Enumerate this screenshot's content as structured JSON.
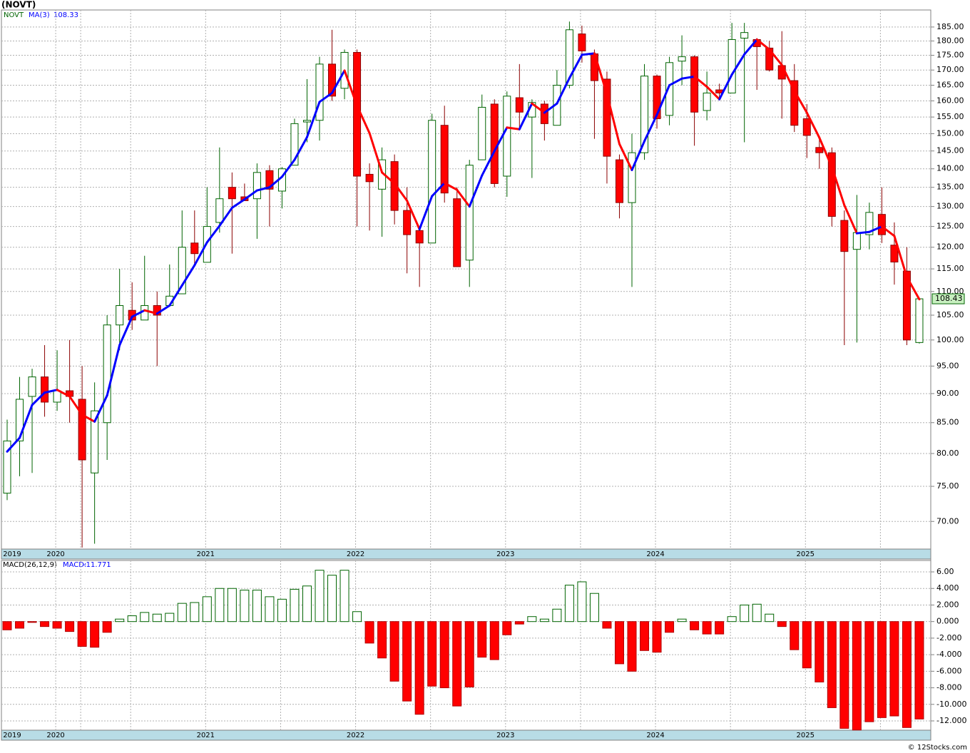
{
  "chart_data": [
    {
      "type": "candlestick",
      "title": "(NOVT)",
      "symbol": "NOVT",
      "log_scale": true,
      "grid": true,
      "categories": [
        "2019",
        null,
        null,
        null,
        "2020",
        null,
        null,
        null,
        null,
        null,
        null,
        null,
        null,
        null,
        null,
        null,
        "2021",
        null,
        null,
        null,
        null,
        null,
        null,
        null,
        null,
        null,
        null,
        null,
        "2022",
        null,
        null,
        null,
        null,
        null,
        null,
        null,
        null,
        null,
        null,
        null,
        "2023",
        null,
        null,
        null,
        null,
        null,
        null,
        null,
        null,
        null,
        null,
        null,
        "2024",
        null,
        null,
        null,
        null,
        null,
        null,
        null,
        null,
        null,
        null,
        null,
        "2025",
        null,
        null,
        null,
        null,
        null,
        null,
        null,
        null,
        null
      ],
      "open": [
        74,
        82,
        89.5,
        93,
        88.5,
        90.5,
        89,
        77,
        85,
        103,
        106,
        104,
        107,
        107,
        109.5,
        121,
        116.5,
        126,
        135,
        132.5,
        132,
        139.5,
        134,
        141,
        153.5,
        154,
        172,
        164,
        176,
        138.5,
        134.5,
        142,
        129,
        124,
        121,
        152.5,
        132,
        117,
        142.5,
        159,
        138,
        161,
        155,
        159,
        152.5,
        165,
        182.5,
        175.5,
        167,
        142.5,
        131,
        144.5,
        168,
        155.5,
        173,
        174.5,
        157,
        163.5,
        162.5,
        181,
        180.5,
        177.5,
        171.5,
        166.5,
        154.5,
        146,
        144.5,
        126.5,
        119.5,
        123,
        128,
        120.5,
        114.5,
        99.5
      ],
      "high": [
        85.5,
        93,
        94.5,
        99,
        98,
        100,
        95,
        92,
        105,
        115,
        112,
        118,
        110,
        116,
        129,
        129,
        135,
        146,
        139,
        136,
        141.5,
        141,
        140.5,
        154.5,
        167,
        174.5,
        184,
        177,
        177,
        141.5,
        146,
        144,
        135,
        125,
        156,
        158.5,
        135,
        142.5,
        162,
        160.5,
        163,
        172,
        160.5,
        160,
        170,
        187,
        185.5,
        177,
        169.5,
        144,
        150,
        172,
        168.5,
        174.5,
        182,
        175,
        169.5,
        165.5,
        186.5,
        186.5,
        181,
        180,
        183.5,
        172,
        159,
        148.5,
        146,
        129,
        133,
        131,
        135,
        126,
        120,
        108.6
      ],
      "low": [
        73,
        76.5,
        77,
        86,
        87,
        85,
        66.5,
        67,
        79,
        98,
        102,
        104,
        95,
        107,
        109.5,
        116,
        116.5,
        123.5,
        118.5,
        131.5,
        122,
        125,
        129.5,
        141,
        147.5,
        148,
        160,
        160.5,
        125,
        124,
        122.5,
        125.5,
        114,
        111,
        121,
        131,
        115.5,
        111,
        142.5,
        135,
        132.5,
        151,
        137.5,
        148,
        152.5,
        164,
        172.5,
        148.5,
        136,
        127,
        111,
        142.5,
        151.5,
        152.5,
        165,
        146.5,
        154,
        160.5,
        162.5,
        147.5,
        163.5,
        169.5,
        154.5,
        150.5,
        143,
        140,
        125,
        99,
        99.5,
        119.5,
        121,
        111.5,
        99,
        99.3
      ],
      "close": [
        82,
        89,
        93,
        88.5,
        90.5,
        89.5,
        79,
        87,
        103,
        107,
        104,
        107,
        105,
        109,
        120,
        118.5,
        125,
        132,
        132,
        131.5,
        139,
        134.5,
        140,
        153,
        154,
        172,
        161.5,
        176,
        138,
        136.5,
        142.5,
        129,
        123,
        121,
        154,
        133.5,
        115.5,
        141,
        158,
        136,
        161.5,
        156.5,
        159.5,
        153,
        165,
        184,
        176.5,
        166.5,
        143.5,
        131,
        144.5,
        168,
        154.5,
        172.5,
        174.5,
        156.5,
        162.5,
        162.5,
        180.5,
        183,
        178,
        170,
        167,
        152.5,
        149.5,
        144.5,
        127.5,
        119,
        123.5,
        128.5,
        123,
        116.56,
        100,
        108.43
      ],
      "up_color": "#006400",
      "down_color": "#ff0000",
      "down_wick_color": "#8b0000",
      "overlay": {
        "name": "MA(3)",
        "up_color": "#0000ff",
        "down_color": "#ff0000",
        "values": [
          80.3,
          82.5,
          88,
          90.17,
          90.67,
          89.5,
          86.33,
          85.17,
          89.67,
          99,
          104.67,
          106,
          105.33,
          107,
          111.33,
          115.83,
          121.17,
          125.17,
          129.67,
          131.83,
          134.17,
          135,
          137.83,
          142.5,
          149,
          159.67,
          162.5,
          169.83,
          158.5,
          150.17,
          139,
          136,
          131.5,
          124.33,
          132.67,
          136.17,
          134.33,
          130,
          138.17,
          145,
          151.83,
          151.33,
          159.17,
          156.33,
          159.17,
          167.33,
          175.17,
          175.67,
          162.17,
          147,
          139.67,
          147.83,
          155.67,
          165,
          167.17,
          167.83,
          164.5,
          160.5,
          168.5,
          175.33,
          180.5,
          177,
          171.67,
          163.17,
          156.33,
          148.83,
          140.5,
          130.33,
          123.33,
          123.67,
          125,
          122.69,
          113.19,
          108.33
        ]
      },
      "ylim": [
        66.3,
        191.3
      ],
      "yticks": [
        {
          "value": 185,
          "label": "185.00"
        },
        {
          "value": 180,
          "label": "180.00"
        },
        {
          "value": 175,
          "label": "175.00"
        },
        {
          "value": 170,
          "label": "170.00"
        },
        {
          "value": 165,
          "label": "165.00"
        },
        {
          "value": 160,
          "label": "160.00"
        },
        {
          "value": 155,
          "label": "155.00"
        },
        {
          "value": 150,
          "label": "150.00"
        },
        {
          "value": 145,
          "label": "145.00"
        },
        {
          "value": 140,
          "label": "140.00"
        },
        {
          "value": 135,
          "label": "135.00"
        },
        {
          "value": 130,
          "label": "130.00"
        },
        {
          "value": 125,
          "label": "125.00"
        },
        {
          "value": 120,
          "label": "120.00"
        },
        {
          "value": 115,
          "label": "115.00"
        },
        {
          "value": 110,
          "label": "110.00"
        },
        {
          "value": 105,
          "label": "105.00"
        },
        {
          "value": 100,
          "label": "100.00"
        },
        {
          "value": 95,
          "label": "95.00"
        },
        {
          "value": 90,
          "label": "90.00"
        },
        {
          "value": 85,
          "label": "85.00"
        },
        {
          "value": 80,
          "label": "80.00"
        },
        {
          "value": 75,
          "label": "75.00"
        },
        {
          "value": 70,
          "label": "70.00"
        }
      ]
    },
    {
      "type": "bar",
      "title": "MACD(26,12,9)",
      "value_name": "MACD:",
      "grid": true,
      "pos_color": "#006400",
      "neg_color": "#ff0000",
      "values": [
        -1,
        -0.8,
        -0.1,
        -0.6,
        -0.8,
        -1.2,
        -3,
        -3.1,
        -1.3,
        0.3,
        0.7,
        1.1,
        0.9,
        1,
        2.2,
        2.3,
        3,
        4,
        4,
        3.8,
        3.8,
        3,
        2.7,
        3.9,
        4.3,
        6.2,
        5.6,
        6.2,
        1.2,
        -2.6,
        -4.4,
        -7.2,
        -9.6,
        -11.2,
        -7.8,
        -8,
        -10.2,
        -7.9,
        -4.3,
        -4.6,
        -1.6,
        -0.3,
        0.6,
        0.3,
        1.5,
        4.4,
        4.8,
        3.4,
        -0.8,
        -5.1,
        -6,
        -3.5,
        -3.7,
        -1.3,
        0.3,
        -1,
        -1.5,
        -1.5,
        0.6,
        2,
        2.1,
        0.9,
        -0.6,
        -3.4,
        -5.6,
        -7.3,
        -10.4,
        -12.9,
        -13.1,
        -12.1,
        -11.6,
        -11.4,
        -12.8,
        -11.771
      ],
      "ylim": [
        -13.12,
        7.38
      ],
      "yticks": [
        {
          "value": 6,
          "label": "6.00"
        },
        {
          "value": 4,
          "label": "4.000"
        },
        {
          "value": 2,
          "label": "2.000"
        },
        {
          "value": 0,
          "label": "0.000"
        },
        {
          "value": -2,
          "label": "-2.000"
        },
        {
          "value": -4,
          "label": "-4.000"
        },
        {
          "value": -6,
          "label": "-6.000"
        },
        {
          "value": -8,
          "label": "-8.000"
        },
        {
          "value": -10,
          "label": "-10.000"
        },
        {
          "value": -12,
          "label": "-12.000"
        }
      ]
    }
  ],
  "footer": "© 12Stocks.com"
}
